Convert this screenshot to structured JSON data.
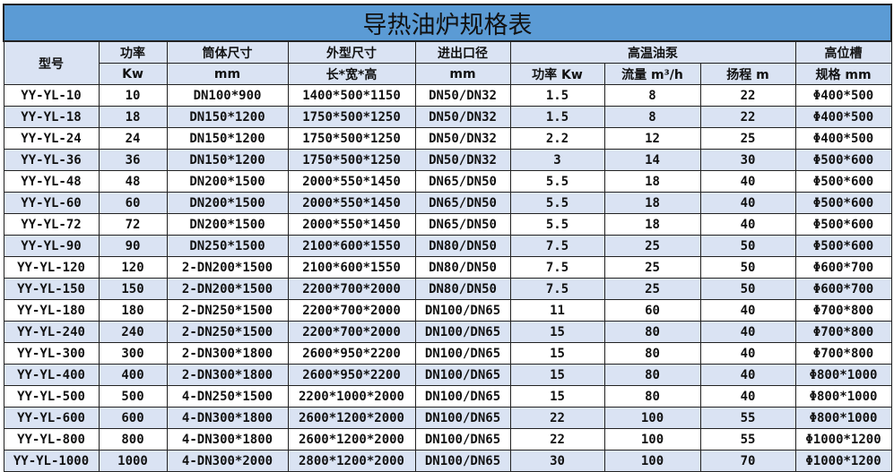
{
  "title": "导热油炉规格表",
  "headers": {
    "model": "型号",
    "power": "功率",
    "power_unit": "Kw",
    "shell": "筒体尺寸",
    "shell_unit": "mm",
    "outer": "外型尺寸",
    "outer_unit": "长*宽*高",
    "port": "进出口径",
    "port_unit": "mm",
    "pump": "高温油泵",
    "pump_power": "功率 Kw",
    "pump_flow": "流量 m³/h",
    "pump_head": "扬程 m",
    "tank": "高位槽",
    "tank_spec": "规格 mm"
  },
  "rows": [
    [
      "YY-YL-10",
      "10",
      "DN100*900",
      "1400*500*1150",
      "DN50/DN32",
      "1.5",
      "8",
      "22",
      "Φ400*500"
    ],
    [
      "YY-YL-18",
      "18",
      "DN150*1200",
      "1750*500*1250",
      "DN50/DN32",
      "1.5",
      "8",
      "22",
      "Φ400*500"
    ],
    [
      "YY-YL-24",
      "24",
      "DN150*1200",
      "1750*500*1250",
      "DN50/DN32",
      "2.2",
      "12",
      "25",
      "Φ400*500"
    ],
    [
      "YY-YL-36",
      "36",
      "DN150*1200",
      "1750*500*1250",
      "DN50/DN32",
      "3",
      "14",
      "30",
      "Φ500*600"
    ],
    [
      "YY-YL-48",
      "48",
      "DN200*1500",
      "2000*550*1450",
      "DN65/DN50",
      "5.5",
      "18",
      "40",
      "Φ500*600"
    ],
    [
      "YY-YL-60",
      "60",
      "DN200*1500",
      "2000*550*1450",
      "DN65/DN50",
      "5.5",
      "18",
      "40",
      "Φ500*600"
    ],
    [
      "YY-YL-72",
      "72",
      "DN200*1500",
      "2000*550*1450",
      "DN65/DN50",
      "5.5",
      "18",
      "40",
      "Φ500*600"
    ],
    [
      "YY-YL-90",
      "90",
      "DN250*1500",
      "2100*600*1550",
      "DN80/DN50",
      "7.5",
      "25",
      "50",
      "Φ500*600"
    ],
    [
      "YY-YL-120",
      "120",
      "2-DN200*1500",
      "2100*600*1550",
      "DN80/DN50",
      "7.5",
      "25",
      "50",
      "Φ600*700"
    ],
    [
      "YY-YL-150",
      "150",
      "2-DN200*1500",
      "2200*700*2000",
      "DN80/DN50",
      "7.5",
      "25",
      "50",
      "Φ600*700"
    ],
    [
      "YY-YL-180",
      "180",
      "2-DN250*1500",
      "2200*700*2000",
      "DN100/DN65",
      "11",
      "60",
      "40",
      "Φ700*800"
    ],
    [
      "YY-YL-240",
      "240",
      "2-DN250*1500",
      "2200*700*2000",
      "DN100/DN65",
      "15",
      "80",
      "40",
      "Φ700*800"
    ],
    [
      "YY-YL-300",
      "300",
      "2-DN300*1800",
      "2600*950*2200",
      "DN100/DN65",
      "15",
      "80",
      "40",
      "Φ700*800"
    ],
    [
      "YY-YL-400",
      "400",
      "2-DN300*1800",
      "2600*950*2200",
      "DN100/DN65",
      "15",
      "80",
      "40",
      "Φ800*1000"
    ],
    [
      "YY-YL-500",
      "500",
      "4-DN250*1500",
      "2200*1000*2000",
      "DN100/DN65",
      "15",
      "80",
      "40",
      "Φ800*1000"
    ],
    [
      "YY-YL-600",
      "600",
      "4-DN300*1800",
      "2600*1200*2000",
      "DN100/DN65",
      "22",
      "100",
      "55",
      "Φ800*1000"
    ],
    [
      "YY-YL-800",
      "800",
      "4-DN300*1800",
      "2600*1200*2000",
      "DN100/DN65",
      "22",
      "100",
      "55",
      "Φ1000*1200"
    ],
    [
      "YY-YL-1000",
      "1000",
      "4-DN300*2000",
      "2800*1200*2000",
      "DN100/DN65",
      "30",
      "100",
      "70",
      "Φ1000*1200"
    ]
  ]
}
